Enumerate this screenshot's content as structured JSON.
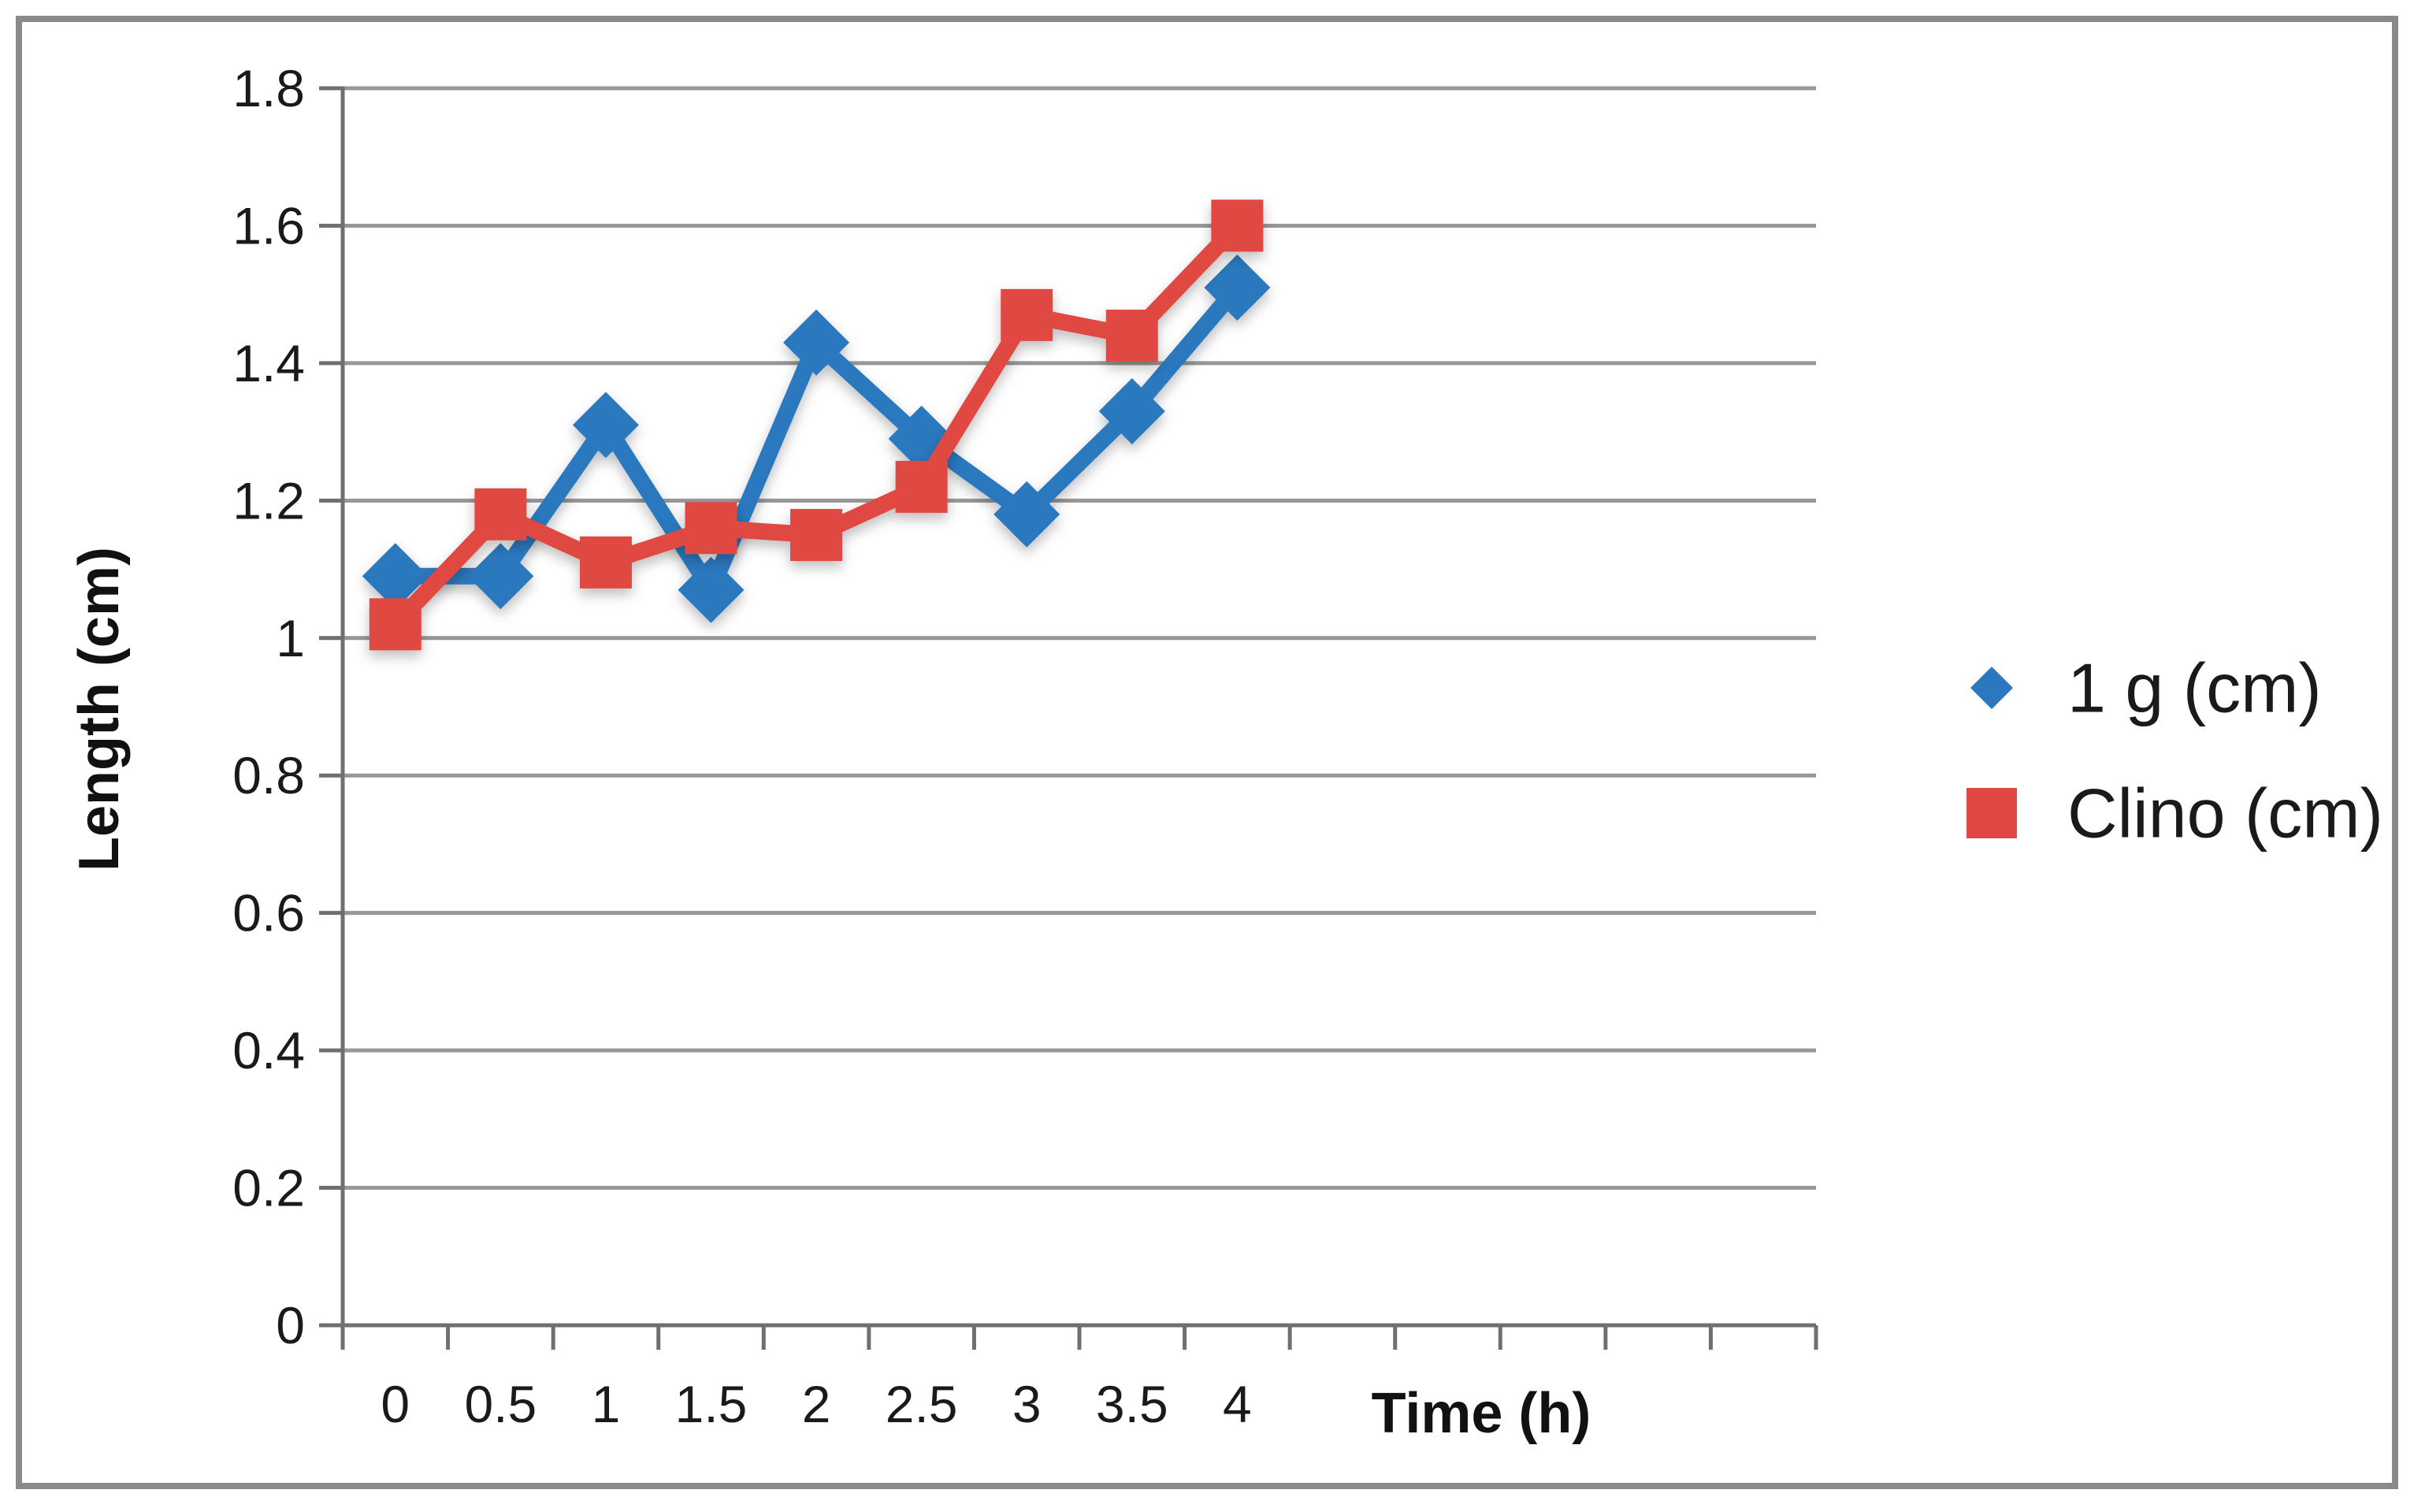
{
  "figure": {
    "background": "#ffffff",
    "border_color": "#8a8a8a"
  },
  "chart_data": {
    "type": "line",
    "title": "",
    "xlabel": "Time (h)",
    "ylabel": "Length (cm)",
    "categories": [
      "0",
      "0.5",
      "1",
      "1.5",
      "2",
      "2.5",
      "3",
      "3.5",
      "4"
    ],
    "series": [
      {
        "name": "1 g (cm)",
        "color": "#2b78be",
        "marker": "diamond",
        "values": [
          1.09,
          1.09,
          1.31,
          1.07,
          1.43,
          1.29,
          1.18,
          1.33,
          1.51
        ]
      },
      {
        "name": "Clino (cm)",
        "color": "#df4843",
        "marker": "square",
        "values": [
          1.02,
          1.18,
          1.11,
          1.16,
          1.15,
          1.22,
          1.47,
          1.44,
          1.6
        ]
      }
    ],
    "ylim": [
      0,
      1.8
    ],
    "y_tick_step": 0.2,
    "y_tick_labels": [
      "0",
      "0.2",
      "0.4",
      "0.6",
      "0.8",
      "1",
      "1.2",
      "1.4",
      "1.6",
      "1.8"
    ],
    "x_total_slots": 14,
    "grid": "horizontal",
    "legend_position": "right",
    "colors": {
      "grid": "#979797",
      "axis": "#6f6f6f",
      "text": "#1a1a1a"
    }
  }
}
